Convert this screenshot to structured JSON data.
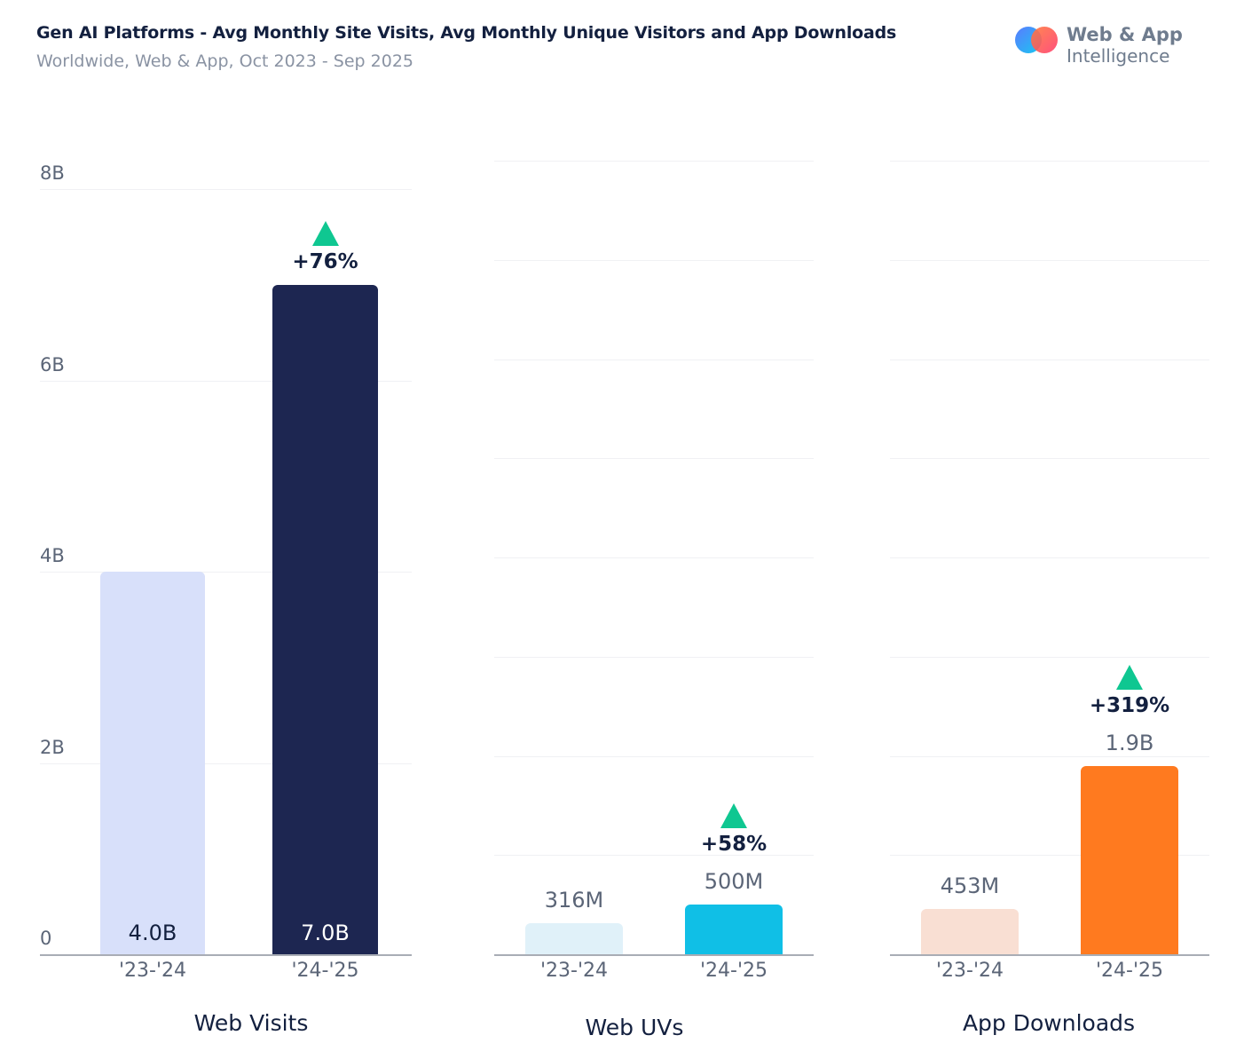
{
  "header": {
    "title": "Gen AI Platforms - Avg Monthly Site Visits, Avg Monthly Unique Visitors and App Downloads",
    "subtitle": "Worldwide, Web & App, Oct 2023 - Sep 2025",
    "logo_line1": "Web & App",
    "logo_line2": "Intelligence"
  },
  "chart_data": [
    {
      "type": "bar",
      "title": "Web Visits",
      "categories": [
        "'23-'24",
        "'24-'25"
      ],
      "values": [
        4.0,
        7.0
      ],
      "value_labels": [
        "4.0B",
        "7.0B"
      ],
      "unit": "B",
      "change_label": "+76%",
      "yticks": [
        "0",
        "2B",
        "4B",
        "6B",
        "8B"
      ],
      "ylim": [
        0,
        8
      ],
      "colors": [
        "#d8e0fa",
        "#1d2651"
      ],
      "grid": true
    },
    {
      "type": "bar",
      "title": "Web UVs",
      "categories": [
        "'23-'24",
        "'24-'25"
      ],
      "values": [
        316,
        500
      ],
      "value_labels": [
        "316M",
        "500M"
      ],
      "unit": "M",
      "change_label": "+58%",
      "ylim": [
        0,
        8000
      ],
      "colors": [
        "#e0f1f9",
        "#10bfe6"
      ],
      "grid": true
    },
    {
      "type": "bar",
      "title": "App Downloads",
      "categories": [
        "'23-'24",
        "'24-'25"
      ],
      "values": [
        453,
        1900
      ],
      "value_labels": [
        "453M",
        "1.9B"
      ],
      "unit": "M",
      "change_label": "+319%",
      "ylim": [
        0,
        8000
      ],
      "colors": [
        "#f9dfd3",
        "#ff7a1f"
      ],
      "grid": true
    }
  ],
  "colors": {
    "increase": "#0fc791"
  }
}
